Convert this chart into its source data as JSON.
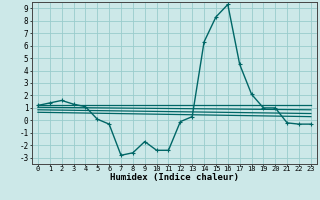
{
  "xlabel": "Humidex (Indice chaleur)",
  "background_color": "#cce8e8",
  "grid_color": "#99cccc",
  "line_color": "#006666",
  "xlim": [
    -0.5,
    23.5
  ],
  "ylim": [
    -3.5,
    9.5
  ],
  "xticks": [
    0,
    1,
    2,
    3,
    4,
    5,
    6,
    7,
    8,
    9,
    10,
    11,
    12,
    13,
    14,
    15,
    16,
    17,
    18,
    19,
    20,
    21,
    22,
    23
  ],
  "yticks": [
    -3,
    -2,
    -1,
    0,
    1,
    2,
    3,
    4,
    5,
    6,
    7,
    8,
    9
  ],
  "line1_x": [
    0,
    1,
    2,
    3,
    4,
    5,
    6,
    7,
    8,
    9,
    10,
    11,
    12,
    13,
    14,
    15,
    16,
    17,
    18,
    19,
    20,
    21,
    22,
    23
  ],
  "line1_y": [
    1.2,
    1.4,
    1.6,
    1.3,
    1.1,
    0.1,
    -0.3,
    -2.8,
    -2.6,
    -1.7,
    -2.4,
    -2.4,
    -0.1,
    0.3,
    6.3,
    8.3,
    9.3,
    4.5,
    2.1,
    1.0,
    1.0,
    -0.2,
    -0.3,
    -0.3
  ],
  "line2_x": [
    0,
    23
  ],
  "line2_y": [
    1.2,
    1.2
  ],
  "line3_x": [
    0,
    23
  ],
  "line3_y": [
    1.05,
    0.85
  ],
  "line4_x": [
    0,
    23
  ],
  "line4_y": [
    0.85,
    0.55
  ],
  "line5_x": [
    0,
    23
  ],
  "line5_y": [
    0.65,
    0.3
  ],
  "xlabel_fontsize": 6.5,
  "tick_fontsize_x": 5,
  "tick_fontsize_y": 5.5
}
